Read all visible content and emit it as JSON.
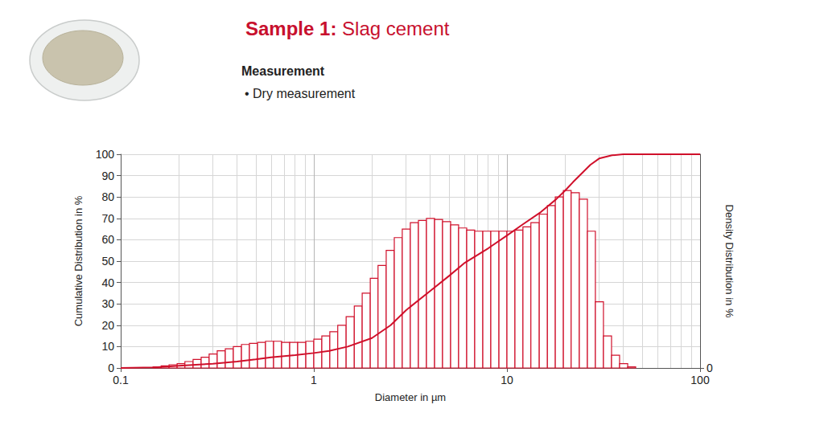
{
  "chart_data": {
    "type": "histogram",
    "title": "Sample 1: Slag cement",
    "subtitle": "Measurement",
    "annotations": [
      "• Dry measurement"
    ],
    "x_label": "Diameter in µm",
    "y_label": "Cumulative Distribution in %",
    "y2_label": "Density Distribution in %",
    "log": "x",
    "grid": true,
    "xlim": [
      0.1,
      100
    ],
    "xticks": [
      0.1,
      1,
      10,
      100
    ],
    "ylim": [
      0,
      100
    ],
    "yticks": [
      0,
      10,
      20,
      30,
      40,
      50,
      60,
      70,
      80,
      90,
      100
    ],
    "y2lim": [
      0,
      100
    ],
    "y2ticks": [
      0
    ],
    "series": [
      {
        "type": "bar",
        "axis": "y2",
        "color": "#d0102b",
        "bins": [
          0.147,
          0.162,
          0.178,
          0.196,
          0.215,
          0.237,
          0.261,
          0.287,
          0.316,
          0.348,
          0.383,
          0.422,
          0.464,
          0.511,
          0.562,
          0.619,
          0.681,
          0.75,
          0.825,
          0.909,
          1,
          1.1,
          1.21,
          1.33,
          1.47,
          1.62,
          1.78,
          1.96,
          2.15,
          2.37,
          2.61,
          2.87,
          3.16,
          3.48,
          3.83,
          4.22,
          4.64,
          5.11,
          5.62,
          6.19,
          6.81,
          7.5,
          8.25,
          9.09,
          10,
          11,
          12.1,
          13.3,
          14.7,
          16.2,
          17.8,
          19.6,
          21.5,
          23.7,
          26.1,
          28.7,
          31.6,
          34.8,
          38.3,
          42.2,
          46.4
        ],
        "values": [
          0.5,
          1,
          1.5,
          2,
          3,
          4,
          5,
          6.5,
          8,
          9,
          10,
          11,
          11.5,
          12,
          12.5,
          12.5,
          12,
          12,
          12,
          12.5,
          13.5,
          15,
          17,
          20,
          24,
          29,
          35,
          42,
          48,
          55,
          61,
          65,
          68,
          69,
          70,
          69.5,
          68.5,
          67,
          65.5,
          64.5,
          64,
          64,
          64,
          64,
          64,
          64.5,
          66,
          68,
          72,
          76,
          80,
          83,
          82,
          79,
          64,
          31,
          15,
          6,
          2,
          0.5
        ]
      },
      {
        "type": "line",
        "color": "#d0102b",
        "x": [
          0.1,
          0.15,
          0.2,
          0.3,
          0.4,
          0.5,
          0.6,
          0.8,
          1,
          1.2,
          1.5,
          2,
          2.5,
          3,
          4,
          5,
          6,
          8,
          10,
          12,
          15,
          18,
          20,
          22,
          25,
          27,
          30,
          35,
          40,
          50,
          100
        ],
        "values": [
          0,
          0.3,
          1,
          2,
          3,
          4,
          5,
          6,
          7,
          8,
          10,
          14,
          20,
          27,
          36,
          43,
          49,
          56,
          62,
          67,
          73,
          79,
          83,
          87,
          92,
          95,
          98,
          99.5,
          100,
          100,
          100
        ]
      }
    ]
  }
}
